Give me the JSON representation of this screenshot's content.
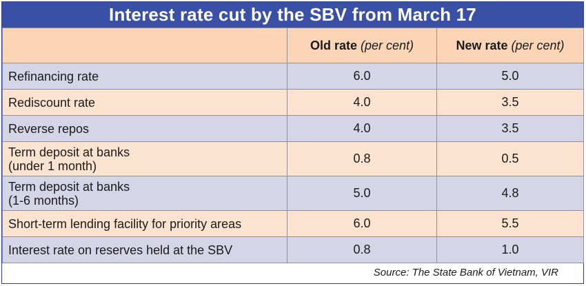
{
  "title": "Interest rate cut by the SBV from March 17",
  "header": {
    "col1": "",
    "col2_main": "Old rate",
    "col2_unit": "(per cent)",
    "col3_main": "New rate",
    "col3_unit": "(per cent)"
  },
  "rows": [
    {
      "label": "Refinancing rate",
      "old": "6.0",
      "new": "5.0"
    },
    {
      "label": "Rediscount rate",
      "old": "4.0",
      "new": "3.5"
    },
    {
      "label": "Reverse repos",
      "old": "4.0",
      "new": "3.5"
    },
    {
      "label_line1": "Term deposit at banks",
      "label_line2": "(under 1 month)",
      "old": "0.8",
      "new": "0.5"
    },
    {
      "label_line1": "Term deposit at banks",
      "label_line2": "(1-6 months)",
      "old": "5.0",
      "new": "4.8"
    },
    {
      "label": "Short-term lending facility for priority areas",
      "old": "6.0",
      "new": "5.5"
    },
    {
      "label": "Interest rate on reserves held at the SBV",
      "old": "0.8",
      "new": "1.0"
    }
  ],
  "source": "Source: The State Bank of Vietnam, VIR",
  "chart_data": {
    "type": "table",
    "title": "Interest rate cut by the SBV from March 17",
    "columns": [
      "",
      "Old rate (per cent)",
      "New rate (per cent)"
    ],
    "categories": [
      "Refinancing rate",
      "Rediscount rate",
      "Reverse repos",
      "Term deposit at banks (under 1 month)",
      "Term deposit at banks (1-6 months)",
      "Short-term lending facility for priority areas",
      "Interest rate on reserves held at the SBV"
    ],
    "series": [
      {
        "name": "Old rate (per cent)",
        "values": [
          6.0,
          4.0,
          4.0,
          0.8,
          5.0,
          6.0,
          0.8
        ]
      },
      {
        "name": "New rate (per cent)",
        "values": [
          5.0,
          3.5,
          3.5,
          0.5,
          4.8,
          5.5,
          1.0
        ]
      }
    ]
  },
  "colors": {
    "title_bg": "#3a4fa6",
    "header_bg": "#fbd5b5",
    "row_lavender": "#d5d5e8",
    "row_peach": "#fce3cf"
  }
}
